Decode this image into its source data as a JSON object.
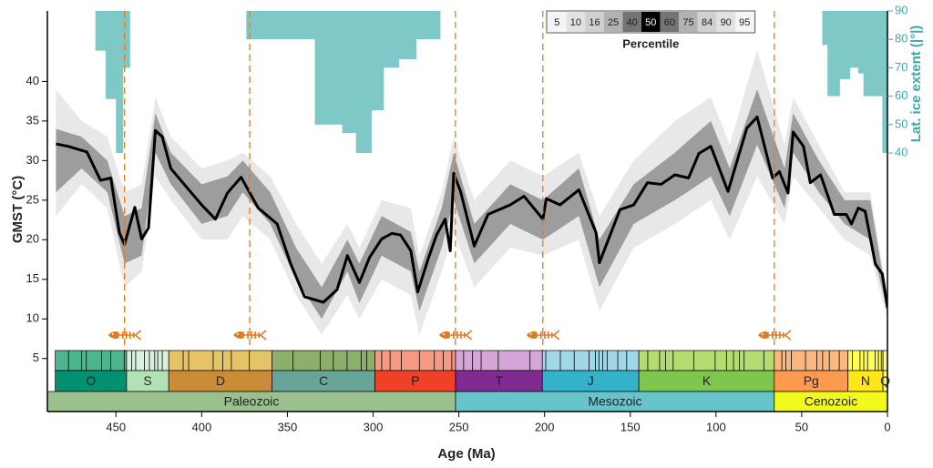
{
  "chart_data": {
    "type": "line",
    "xlabel": "Age (Ma)",
    "ylabel": "GMST (°C)",
    "y2label": "Lat. ice extent (|°|)",
    "xlim": [
      490,
      0
    ],
    "xticks": [
      450,
      400,
      350,
      300,
      250,
      200,
      150,
      100,
      50,
      0
    ],
    "ylim": [
      -1.7,
      48.9
    ],
    "yticks": [
      5,
      10,
      15,
      20,
      25,
      30,
      35,
      40
    ],
    "y2lim": [
      -51,
      90
    ],
    "y2ticks": [
      40,
      50,
      60,
      70,
      80,
      90
    ],
    "y2color": "#3fa9a9",
    "median": {
      "color": "#000000",
      "x": [
        485,
        478,
        467,
        459,
        453,
        448,
        445,
        439,
        435,
        431,
        427,
        423,
        418,
        409,
        400,
        392,
        385,
        377,
        367,
        356,
        348,
        340,
        329,
        321,
        315,
        308,
        302,
        295,
        289,
        284,
        278,
        274,
        268,
        263,
        258,
        255,
        253,
        249,
        241,
        233,
        220,
        212,
        201,
        199,
        191,
        180,
        170,
        168,
        156,
        148,
        140,
        132,
        124,
        116,
        110,
        103,
        93,
        82,
        76,
        67,
        63,
        58,
        55,
        49,
        45,
        39,
        31,
        24,
        21,
        17,
        13,
        7,
        3,
        0
      ],
      "values": [
        32.1,
        31.8,
        31.1,
        27.5,
        27.8,
        20.9,
        19.4,
        24.1,
        20.1,
        21.5,
        33.8,
        33,
        29,
        26.7,
        24.4,
        22.6,
        25.9,
        27.9,
        24,
        22,
        16.9,
        12.8,
        12.1,
        13.7,
        18,
        14.6,
        17.8,
        20.1,
        20.8,
        20.6,
        18.6,
        13.4,
        17.5,
        20.6,
        22.6,
        18.6,
        28.4,
        26.1,
        19.2,
        23.2,
        24.4,
        25.5,
        22.6,
        25.2,
        24.4,
        26.3,
        20.9,
        17.1,
        23.8,
        24.4,
        27.2,
        27,
        28.2,
        27.8,
        30.9,
        31.8,
        26.1,
        34.1,
        35.5,
        27.8,
        28.6,
        25.9,
        33.6,
        31.8,
        27.2,
        28.2,
        23.2,
        23.2,
        22,
        24,
        23.6,
        16.9,
        15.7,
        11.4
      ]
    },
    "bands": [
      {
        "color": "#e4e4e4",
        "x": [
          485,
          470,
          455,
          445,
          435,
          427,
          418,
          400,
          385,
          376,
          360,
          345,
          330,
          315,
          308,
          295,
          278,
          273,
          260,
          253,
          241,
          220,
          201,
          180,
          168,
          148,
          124,
          103,
          92,
          76,
          60,
          55,
          40,
          25,
          10,
          0
        ],
        "lower": [
          23,
          27,
          24,
          14,
          16,
          28,
          25,
          20,
          20,
          23,
          20,
          13,
          8,
          13,
          10,
          15,
          13,
          8,
          16,
          21,
          14,
          19,
          18,
          20,
          11,
          19,
          22,
          25,
          20,
          28,
          22,
          28,
          24,
          20,
          18,
          10
        ],
        "upper": [
          39,
          35,
          33,
          26,
          27,
          38,
          33,
          29,
          30,
          31,
          28,
          22,
          17,
          22,
          19,
          25,
          24,
          18,
          26,
          33,
          25,
          30,
          28,
          31,
          23,
          30,
          35,
          38,
          32,
          44,
          32,
          38,
          32,
          26,
          26,
          13
        ]
      },
      {
        "color": "#8f8f8f",
        "x": [
          485,
          470,
          455,
          445,
          435,
          427,
          418,
          400,
          385,
          376,
          360,
          345,
          330,
          315,
          308,
          295,
          278,
          273,
          260,
          253,
          241,
          220,
          201,
          180,
          168,
          148,
          124,
          103,
          92,
          76,
          60,
          55,
          40,
          25,
          10,
          0
        ],
        "lower": [
          26,
          29,
          26,
          17,
          18,
          31,
          27,
          22,
          23,
          26,
          22,
          15,
          10,
          16,
          12,
          18,
          16,
          11,
          19,
          25,
          17,
          22,
          20,
          23,
          14,
          22,
          25,
          28,
          23,
          32,
          24,
          31,
          26,
          22,
          20,
          11
        ],
        "upper": [
          34,
          33,
          30,
          23,
          24,
          36,
          31,
          27,
          28,
          30,
          26,
          19,
          14,
          20,
          17,
          23,
          21,
          16,
          24,
          31,
          22,
          27,
          25,
          29,
          20,
          27,
          31,
          35,
          29,
          39,
          29,
          36,
          30,
          25,
          25,
          12
        ]
      }
    ],
    "legend": {
      "title": "Percentile",
      "items": [
        {
          "label": "5",
          "color": "#f4f4f4"
        },
        {
          "label": "10",
          "color": "#e2e2e2"
        },
        {
          "label": "16",
          "color": "#d0d0d0"
        },
        {
          "label": "25",
          "color": "#b2b2b2"
        },
        {
          "label": "40",
          "color": "#747474"
        },
        {
          "label": "50",
          "color": "#000000"
        },
        {
          "label": "60",
          "color": "#747474"
        },
        {
          "label": "75",
          "color": "#b2b2b2"
        },
        {
          "label": "84",
          "color": "#d0d0d0"
        },
        {
          "label": "90",
          "color": "#e2e2e2"
        },
        {
          "label": "95",
          "color": "#f4f4f4"
        }
      ]
    },
    "ice": {
      "color": "#7fc8c8",
      "pieces": [
        {
          "bins": [
            462,
            456,
            450,
            446,
            442
          ],
          "values": [
            76,
            59,
            40,
            70
          ]
        },
        {
          "bins": [
            374,
            334,
            318,
            310,
            301,
            294,
            285,
            275,
            261
          ],
          "values": [
            80,
            50,
            47,
            40,
            55,
            70,
            73,
            80
          ]
        },
        {
          "bins": [
            38,
            35,
            28,
            22,
            17,
            14,
            3,
            0
          ],
          "values": [
            78,
            60,
            66,
            70,
            68,
            60,
            40
          ]
        }
      ]
    },
    "extinctions": {
      "color": "#e07b20",
      "x": [
        445,
        372,
        252,
        201,
        66
      ]
    },
    "eras": [
      {
        "label": "Paleozoic",
        "start": 541,
        "end": 251.9,
        "color": "#99c08d"
      },
      {
        "label": "Mesozoic",
        "start": 251.9,
        "end": 66,
        "color": "#67c5ca"
      },
      {
        "label": "Cenozoic",
        "start": 66,
        "end": 0,
        "color": "#f2f91d"
      }
    ],
    "periods": [
      {
        "label": "O",
        "start": 485.4,
        "end": 443.8,
        "color": "#009270",
        "stage_color": "#4db691"
      },
      {
        "label": "S",
        "start": 443.8,
        "end": 419.2,
        "color": "#b3e1b6",
        "stage_color": "#d9f0dd"
      },
      {
        "label": "D",
        "start": 419.2,
        "end": 358.9,
        "color": "#cb8c37",
        "stage_color": "#e5c468"
      },
      {
        "label": "C",
        "start": 358.9,
        "end": 298.9,
        "color": "#67a599",
        "stage_color": "#8cb06c"
      },
      {
        "label": "P",
        "start": 298.9,
        "end": 251.9,
        "color": "#f04028",
        "stage_color": "#f79a84"
      },
      {
        "label": "T",
        "start": 251.9,
        "end": 201.3,
        "color": "#812b92",
        "stage_color": "#d6a6d8"
      },
      {
        "label": "J",
        "start": 201.3,
        "end": 145,
        "color": "#34b2c9",
        "stage_color": "#a0d8e8"
      },
      {
        "label": "K",
        "start": 145,
        "end": 66,
        "color": "#7fc64e",
        "stage_color": "#b3dc71"
      },
      {
        "label": "Pg",
        "start": 66,
        "end": 23,
        "color": "#fd9a52",
        "stage_color": "#fdb880"
      },
      {
        "label": "N",
        "start": 23,
        "end": 2.6,
        "color": "#ffe619",
        "stage_color": "#ffff55"
      },
      {
        "label": "Q",
        "start": 2.6,
        "end": 0,
        "color": "#f9f97f",
        "stage_color": "#fff2ae"
      }
    ],
    "stage_boundaries": [
      477.7,
      470,
      467.3,
      458.4,
      453,
      445.2,
      440.8,
      438.5,
      433.4,
      430.5,
      427.4,
      425.6,
      423,
      410.8,
      407.6,
      393.3,
      387.7,
      382.7,
      372.2,
      346.7,
      330.9,
      323.2,
      315.2,
      307,
      303.7,
      295,
      290.1,
      283.5,
      273,
      264.3,
      259.1,
      254.1,
      247.2,
      242,
      237,
      227,
      208.5,
      199.3,
      190.8,
      182.7,
      174.1,
      170.3,
      168.3,
      166.1,
      163.5,
      157.3,
      152.1,
      139.8,
      132.9,
      129.4,
      125,
      113,
      100.5,
      93.9,
      89.8,
      86.3,
      83.6,
      72.1,
      61.6,
      59.2,
      56,
      47.8,
      41.2,
      37.8,
      33.9,
      28.1,
      20.4,
      16,
      13.8,
      11.6,
      7.2,
      5.3,
      3.6
    ]
  }
}
